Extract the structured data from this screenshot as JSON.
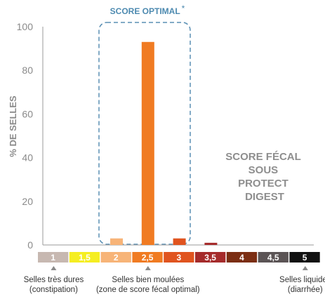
{
  "chart_data": {
    "type": "bar",
    "title": "SCORE OPTIMAL",
    "title_mark": "*",
    "ylabel": "% DE SELLES",
    "ylim": [
      0,
      100
    ],
    "yticks": [
      0,
      20,
      40,
      60,
      80,
      100
    ],
    "grid": false,
    "categories": [
      "1",
      "1,5",
      "2",
      "2,5",
      "3",
      "3,5",
      "4",
      "4,5",
      "5"
    ],
    "values": [
      0,
      0,
      3,
      93,
      3,
      1,
      0,
      0,
      0
    ],
    "bar_colors": [
      "#c7b8b1",
      "#f5ee22",
      "#f7b478",
      "#f07b22",
      "#e0541f",
      "#a52b2b",
      "#7b2e13",
      "#5b5455",
      "#111111"
    ],
    "annotation": [
      "SCORE FÉCAL",
      "SOUS",
      "PROTECT",
      "DIGEST"
    ],
    "optimal_range": [
      "2",
      "3"
    ],
    "captions": [
      {
        "category": "1",
        "lines": [
          "Selles très dures",
          "(constipation)"
        ]
      },
      {
        "category": "2,5",
        "lines": [
          "Selles bien moulées",
          "(zone de score fécal optimal)"
        ]
      },
      {
        "category": "5",
        "lines": [
          "Selles liquides",
          "(diarrhée)"
        ]
      }
    ]
  }
}
